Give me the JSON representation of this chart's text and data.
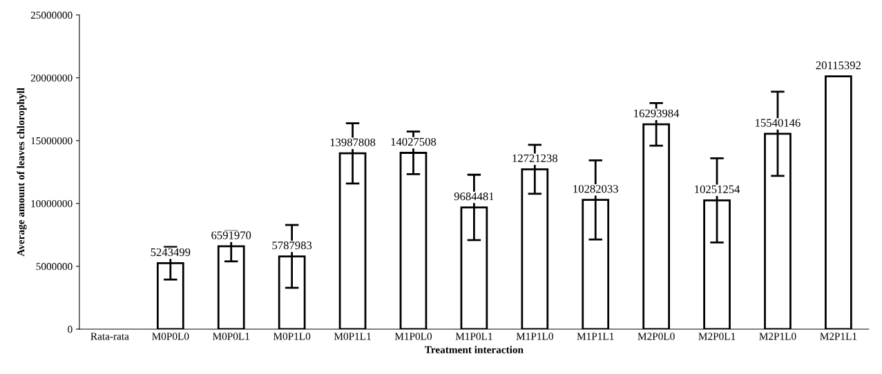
{
  "chart_data": {
    "type": "bar",
    "xlabel": "Treatment interaction",
    "ylabel": "Average amount of leaves chlorophyll",
    "categories": [
      "Rata-rata",
      "M0P0L0",
      "M0P0L1",
      "M0P1L0",
      "M0P1L1",
      "M1P0L0",
      "M1P0L1",
      "M1P1L0",
      "M1P1L1",
      "M2P0L0",
      "M2P0L1",
      "M2P1L0",
      "M2P1L1"
    ],
    "values": [
      null,
      5243499,
      6591970,
      5787983,
      13987808,
      14027508,
      9684481,
      12721238,
      10282033,
      16293984,
      10251254,
      15540146,
      20115392
    ],
    "errors": [
      null,
      1300000,
      1200000,
      2500000,
      2400000,
      1700000,
      2600000,
      1950000,
      3150000,
      1700000,
      3350000,
      3350000,
      null
    ],
    "color": "#ffffff",
    "data_labels": true,
    "ylim": [
      0,
      25000000
    ],
    "yticks": [
      0,
      5000000,
      10000000,
      15000000,
      20000000,
      25000000
    ],
    "grid": false
  }
}
